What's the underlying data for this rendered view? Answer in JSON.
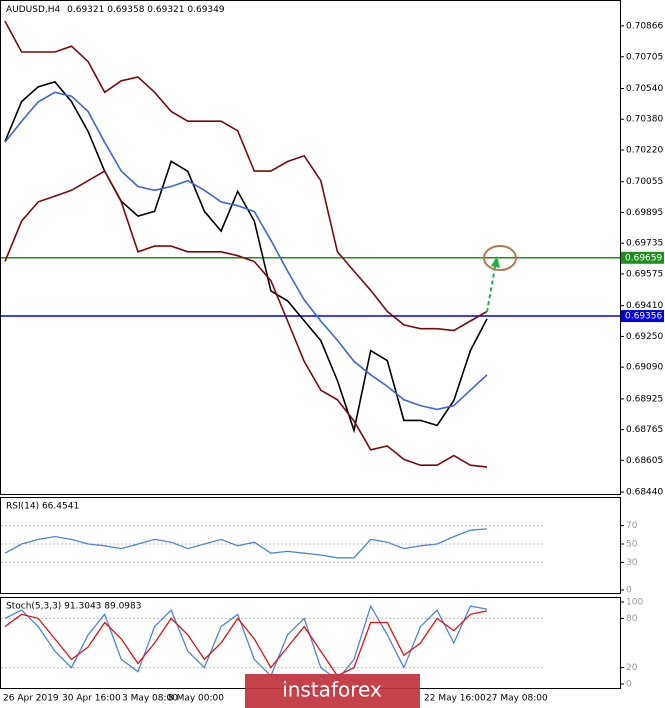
{
  "header": {
    "title": "AUDUSD,H4",
    "ohlc": "0.69321 0.69358 0.69321 0.69349"
  },
  "chart_data": [
    {
      "type": "line",
      "ylim": [
        0.6843,
        0.7099
      ],
      "yticks": [
        0.70866,
        0.70705,
        {
          "value": 0.7054,
          "label": "0.70540"
        },
        {
          "value": 0.7038,
          "label": "0.70380"
        },
        {
          "value": 0.7022,
          "label": "0.70220"
        },
        0.70055,
        0.69895,
        0.69735,
        0.69575,
        {
          "value": 0.6941,
          "label": "0.69410"
        },
        {
          "value": 0.6925,
          "label": "0.69250"
        },
        {
          "value": 0.6909,
          "label": "0.69090"
        },
        0.68925,
        0.68765,
        0.68605,
        {
          "value": 0.6844,
          "label": "0.68440"
        }
      ],
      "series": [
        {
          "color": "#000000",
          "values": [
            0.70264,
            0.70472,
            0.70549,
            0.70575,
            0.70472,
            0.70316,
            0.70109,
            0.69953,
            0.69876,
            0.69901,
            0.70161,
            0.70109,
            0.69901,
            0.69798,
            0.70005,
            0.6985,
            0.69487,
            0.69435,
            0.69331,
            0.69228,
            0.6902,
            0.68761,
            0.69176,
            0.69124,
            0.68813,
            0.68813,
            0.68787,
            0.68916,
            0.69176,
            0.69341
          ]
        },
        {
          "color": "#7b0a0a",
          "values": [
            0.7089,
            0.7073,
            0.7073,
            0.7073,
            0.7076,
            0.7068,
            0.7052,
            0.7058,
            0.706,
            0.7052,
            0.7042,
            0.7037,
            0.7037,
            0.7037,
            0.7032,
            0.7011,
            0.7011,
            0.7016,
            0.7019,
            0.7006,
            0.6969,
            0.6959,
            0.6949,
            0.6938,
            0.6931,
            0.6929,
            0.6929,
            0.6928,
            0.6933,
            0.6938
          ]
        },
        {
          "color": "#7b0a0a",
          "values": [
            0.6964,
            0.6985,
            0.6995,
            0.6998,
            0.7001,
            0.7006,
            0.7011,
            0.6995,
            0.6969,
            0.6972,
            0.6972,
            0.6969,
            0.6969,
            0.6969,
            0.6967,
            0.6964,
            0.6954,
            0.6933,
            0.6912,
            0.6897,
            0.6892,
            0.6881,
            0.6866,
            0.6868,
            0.6861,
            0.6858,
            0.6858,
            0.6863,
            0.6858,
            0.6857
          ]
        },
        {
          "color": "#3a66d6",
          "values": [
            0.7026,
            0.7037,
            0.7047,
            0.7052,
            0.705,
            0.7042,
            0.7026,
            0.7011,
            0.7003,
            0.7001,
            0.7003,
            0.7006,
            0.7001,
            0.6995,
            0.6993,
            0.699,
            0.6975,
            0.6959,
            0.6944,
            0.6933,
            0.6923,
            0.6912,
            0.6905,
            0.6899,
            0.6892,
            0.6889,
            0.6887,
            0.6889,
            0.6897,
            0.6905
          ]
        }
      ],
      "levels": [
        {
          "value": 0.69659,
          "label": "0.69659",
          "color": "#1f8f1f"
        },
        {
          "value": 0.69356,
          "label": "0.69356",
          "color": "#0000e0"
        }
      ]
    },
    {
      "type": "line",
      "title": "RSI(14) 66.4541",
      "ylim": [
        0,
        100
      ],
      "yticks": [
        0,
        30,
        50,
        70
      ],
      "series": [
        {
          "color": "#4a86d8",
          "values": [
            40,
            50,
            55,
            58,
            55,
            50,
            48,
            45,
            50,
            55,
            52,
            45,
            50,
            55,
            48,
            52,
            40,
            42,
            40,
            38,
            35,
            35,
            55,
            52,
            45,
            48,
            50,
            58,
            65,
            66.45
          ]
        }
      ]
    },
    {
      "type": "line",
      "title": "Stoch(5,3,3) 91.3043 89.0983",
      "ylim": [
        0,
        100
      ],
      "yticks": [
        0,
        20,
        80,
        100
      ],
      "series": [
        {
          "color": "#4a86d8",
          "values": [
            80,
            90,
            70,
            40,
            20,
            60,
            85,
            30,
            15,
            70,
            90,
            40,
            20,
            70,
            85,
            30,
            10,
            60,
            80,
            20,
            5,
            30,
            95,
            60,
            20,
            70,
            90,
            50,
            95,
            91.3
          ]
        },
        {
          "color": "#e01010",
          "values": [
            70,
            85,
            80,
            55,
            30,
            45,
            75,
            55,
            25,
            50,
            80,
            60,
            30,
            50,
            80,
            55,
            20,
            45,
            70,
            40,
            10,
            20,
            75,
            75,
            35,
            50,
            80,
            65,
            85,
            89.1
          ]
        }
      ]
    }
  ],
  "time_axis": [
    "26 Apr 2019",
    "30 Apr 16:00",
    "3 May 08:00",
    "8 May 00:00",
    "22 May 16:00",
    "27 May 08:00"
  ],
  "watermark": "instaforex"
}
